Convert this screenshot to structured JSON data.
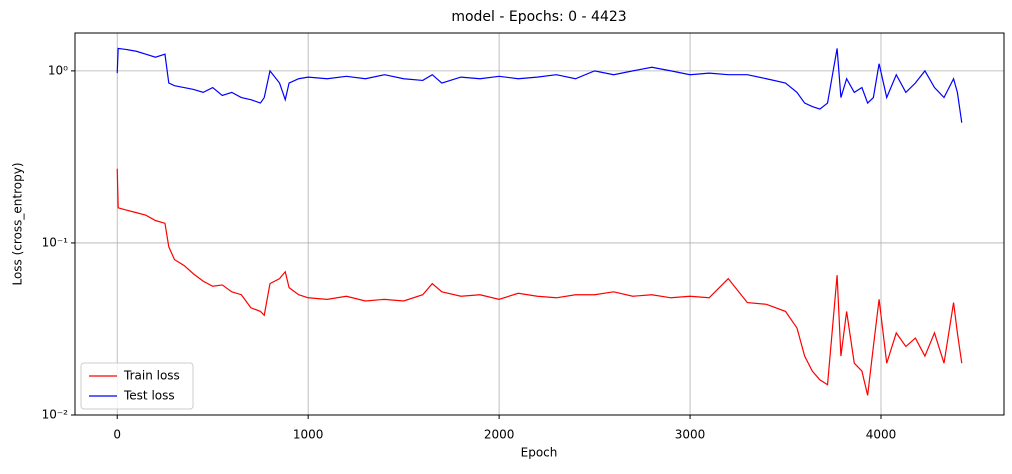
{
  "chart_data": {
    "type": "line",
    "title": "model - Epochs: 0 - 4423",
    "x_label": "Epoch",
    "y_label": "Loss (cross_entropy)",
    "x": [
      0,
      5,
      50,
      100,
      150,
      200,
      250,
      270,
      300,
      350,
      400,
      450,
      500,
      550,
      600,
      650,
      700,
      750,
      770,
      800,
      850,
      880,
      900,
      950,
      1000,
      1100,
      1200,
      1300,
      1400,
      1500,
      1600,
      1650,
      1700,
      1800,
      1900,
      2000,
      2100,
      2200,
      2300,
      2400,
      2500,
      2600,
      2700,
      2800,
      2900,
      3000,
      3100,
      3200,
      3300,
      3400,
      3500,
      3560,
      3600,
      3640,
      3680,
      3720,
      3770,
      3790,
      3820,
      3860,
      3900,
      3930,
      3960,
      3990,
      4030,
      4080,
      4130,
      4180,
      4230,
      4280,
      4330,
      4380,
      4400,
      4423
    ],
    "series": [
      {
        "name": "Train loss",
        "color": "#ff0000",
        "values": [
          0.27,
          0.16,
          0.155,
          0.15,
          0.145,
          0.135,
          0.13,
          0.095,
          0.08,
          0.074,
          0.066,
          0.06,
          0.056,
          0.057,
          0.052,
          0.05,
          0.042,
          0.04,
          0.038,
          0.058,
          0.062,
          0.068,
          0.055,
          0.05,
          0.048,
          0.047,
          0.049,
          0.046,
          0.047,
          0.046,
          0.05,
          0.058,
          0.052,
          0.049,
          0.05,
          0.047,
          0.051,
          0.049,
          0.048,
          0.05,
          0.05,
          0.052,
          0.049,
          0.05,
          0.048,
          0.049,
          0.048,
          0.062,
          0.045,
          0.044,
          0.04,
          0.032,
          0.022,
          0.018,
          0.016,
          0.015,
          0.065,
          0.022,
          0.04,
          0.02,
          0.018,
          0.013,
          0.025,
          0.047,
          0.02,
          0.03,
          0.025,
          0.028,
          0.022,
          0.03,
          0.02,
          0.045,
          0.03,
          0.02
        ]
      },
      {
        "name": "Test loss",
        "color": "#0000ff",
        "values": [
          0.97,
          1.35,
          1.33,
          1.3,
          1.25,
          1.2,
          1.25,
          0.85,
          0.82,
          0.8,
          0.78,
          0.75,
          0.8,
          0.72,
          0.75,
          0.7,
          0.68,
          0.65,
          0.7,
          1.0,
          0.85,
          0.68,
          0.85,
          0.9,
          0.92,
          0.9,
          0.93,
          0.9,
          0.95,
          0.9,
          0.88,
          0.95,
          0.85,
          0.92,
          0.9,
          0.93,
          0.9,
          0.92,
          0.95,
          0.9,
          1.0,
          0.95,
          1.0,
          1.05,
          1.0,
          0.95,
          0.97,
          0.95,
          0.95,
          0.9,
          0.85,
          0.75,
          0.65,
          0.62,
          0.6,
          0.65,
          1.35,
          0.7,
          0.9,
          0.75,
          0.8,
          0.65,
          0.7,
          1.1,
          0.7,
          0.95,
          0.75,
          0.85,
          1.0,
          0.8,
          0.7,
          0.9,
          0.75,
          0.5
        ]
      }
    ],
    "xlim": [
      -221.15,
      4644.15
    ],
    "ylim": [
      0.01,
      1.66
    ],
    "xticks": [
      0,
      1000,
      2000,
      3000,
      4000
    ],
    "yticks": [
      {
        "value": 0.01,
        "label": "10⁻²"
      },
      {
        "value": 0.1,
        "label": "10⁻¹"
      },
      {
        "value": 1,
        "label": "10⁰"
      }
    ],
    "y_scale": "log",
    "grid": true,
    "legend": "lower left"
  }
}
